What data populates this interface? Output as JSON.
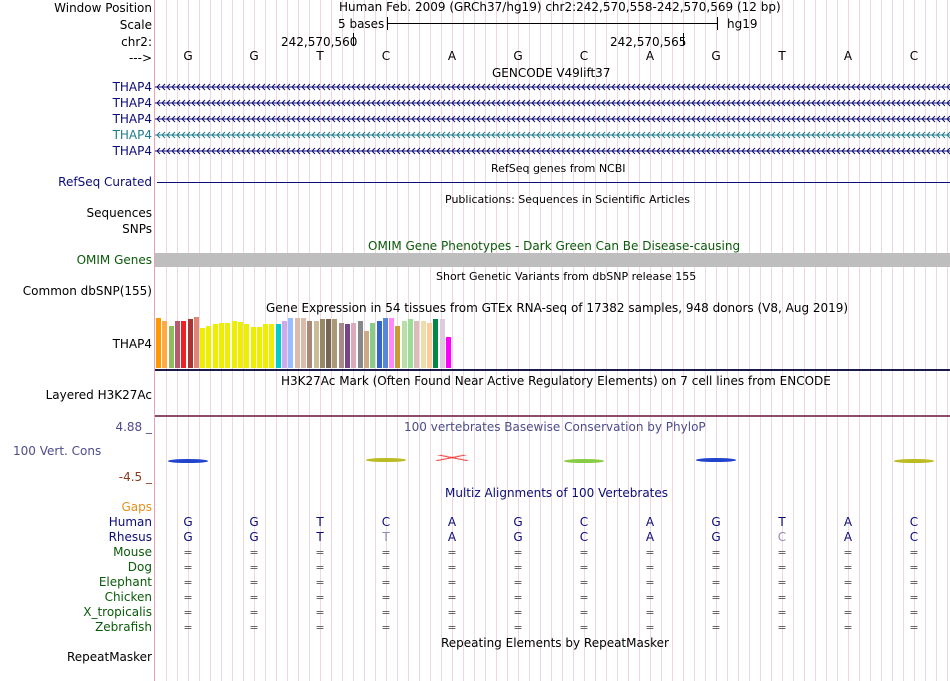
{
  "window_position": {
    "label": "Window Position",
    "text": "Human Feb. 2009 (GRCh37/hg19)   chr2:242,570,558-242,570,569 (12 bp)"
  },
  "scale": {
    "label": "Scale",
    "bases_text": "5 bases",
    "assembly": "hg19"
  },
  "chr": {
    "label": "chr2:",
    "coord1": "242,570,560",
    "coord2": "242,570,565"
  },
  "strand": {
    "label": "--->"
  },
  "sequence": [
    "G",
    "G",
    "T",
    "C",
    "A",
    "G",
    "C",
    "A",
    "G",
    "T",
    "A",
    "C"
  ],
  "gencode": {
    "title": "GENCODE V49lift37",
    "tracks": [
      {
        "name": "THAP4",
        "color": "#0c0c78"
      },
      {
        "name": "THAP4",
        "color": "#0c0c78"
      },
      {
        "name": "THAP4",
        "color": "#0c0c78"
      },
      {
        "name": "THAP4",
        "color": "#1d7c8e"
      },
      {
        "name": "THAP4",
        "color": "#0c0c78"
      }
    ]
  },
  "refseq": {
    "title": "RefSeq genes from NCBI",
    "label": "RefSeq Curated",
    "color": "#0c0c78"
  },
  "publications": {
    "title": "Publications: Sequences in Scientific Articles",
    "label1": "Sequences",
    "label2": "SNPs"
  },
  "omim": {
    "title": "OMIM Gene Phenotypes - Dark Green Can Be Disease-causing",
    "label": "OMIM Genes",
    "color": "#0a5a0a",
    "bar_color": "#bebebe"
  },
  "dbsnp": {
    "title": "Short Genetic Variants from dbSNP release 155",
    "label": "Common dbSNP(155)"
  },
  "gtex": {
    "title": "Gene Expression in 54 tissues from GTEx RNA-seq of 17382 samples, 948 donors (V8, Aug 2019)",
    "label": "THAP4",
    "bars": [
      {
        "h": 0.98,
        "c": "#ff9900"
      },
      {
        "h": 0.93,
        "c": "#ffaa44"
      },
      {
        "h": 0.82,
        "c": "#8fbc5f"
      },
      {
        "h": 0.93,
        "c": "#b85a6b"
      },
      {
        "h": 0.93,
        "c": "#ee2222"
      },
      {
        "h": 0.96,
        "c": "#aa3333"
      },
      {
        "h": 1.0,
        "c": "#dd8877"
      },
      {
        "h": 0.78,
        "c": "#eeee00"
      },
      {
        "h": 0.82,
        "c": "#eeee00"
      },
      {
        "h": 0.86,
        "c": "#eeee00"
      },
      {
        "h": 0.88,
        "c": "#eeee00"
      },
      {
        "h": 0.88,
        "c": "#eeee00"
      },
      {
        "h": 0.93,
        "c": "#eeee00"
      },
      {
        "h": 0.9,
        "c": "#eeee00"
      },
      {
        "h": 0.86,
        "c": "#eeee00"
      },
      {
        "h": 0.8,
        "c": "#eeee00"
      },
      {
        "h": 0.8,
        "c": "#eeee00"
      },
      {
        "h": 0.86,
        "c": "#eeee00"
      },
      {
        "h": 0.86,
        "c": "#eeee00"
      },
      {
        "h": 0.86,
        "c": "#00cccc"
      },
      {
        "h": 0.93,
        "c": "#ccaaee"
      },
      {
        "h": 0.98,
        "c": "#99bbff"
      },
      {
        "h": 0.98,
        "c": "#ddbbaa"
      },
      {
        "h": 0.98,
        "c": "#ddbbaa"
      },
      {
        "h": 0.93,
        "c": "#aa8877"
      },
      {
        "h": 0.93,
        "c": "#ccbb99"
      },
      {
        "h": 0.96,
        "c": "#998866"
      },
      {
        "h": 0.96,
        "c": "#776655"
      },
      {
        "h": 0.96,
        "c": "#aa9977"
      },
      {
        "h": 0.88,
        "c": "#aa8888"
      },
      {
        "h": 0.86,
        "c": "#774488"
      },
      {
        "h": 0.88,
        "c": "#ddaabb"
      },
      {
        "h": 0.93,
        "c": "#888888"
      },
      {
        "h": 0.73,
        "c": "#ccaa88"
      },
      {
        "h": 0.88,
        "c": "#88cc88"
      },
      {
        "h": 0.93,
        "c": "#3366cc"
      },
      {
        "h": 0.98,
        "c": "#5588dd"
      },
      {
        "h": 0.98,
        "c": "#ff88ff"
      },
      {
        "h": 0.82,
        "c": "#cc9933"
      },
      {
        "h": 0.93,
        "c": "#bbddaa"
      },
      {
        "h": 0.96,
        "c": "#99dd99"
      },
      {
        "h": 0.93,
        "c": "#ddbbbb"
      },
      {
        "h": 0.93,
        "c": "#eeddaa"
      },
      {
        "h": 0.88,
        "c": "#ffcc99"
      },
      {
        "h": 0.96,
        "c": "#008844"
      },
      {
        "h": 0.96,
        "c": "#ddccdd"
      },
      {
        "h": 0.61,
        "c": "#ff00ff"
      }
    ]
  },
  "h3k27ac": {
    "title": "H3K27Ac Mark (Often Found Near Active Regulatory Elements) on 7 cell lines from ENCODE",
    "label": "Layered H3K27Ac"
  },
  "phylop": {
    "title": "100 vertebrates Basewise Conservation by PhyloP",
    "label": "100 Vert. Cons",
    "max": "4.88 _",
    "min": "-4.5 _",
    "color": "#4c4c8c",
    "logos": [
      {
        "base": "C",
        "pos": 0,
        "c": "#2244cc",
        "v": 0.25
      },
      {
        "base": "C",
        "pos": 3,
        "c": "#bbbb22",
        "v": 0.35
      },
      {
        "base": "A",
        "pos": 4,
        "c": "#ee2222",
        "v": 0.8
      },
      {
        "base": "G",
        "pos": 6,
        "c": "#88cc44",
        "v": 0.2
      },
      {
        "base": "C",
        "pos": 8,
        "c": "#2244cc",
        "v": 0.35
      },
      {
        "base": "G",
        "pos": 11,
        "c": "#bbbb22",
        "v": 0.25
      }
    ]
  },
  "multiz": {
    "title": "Multiz Alignments of 100 Vertebrates",
    "gaps_label": "Gaps",
    "species": [
      {
        "name": "Human",
        "color": "#0c0c78",
        "bases": [
          "G",
          "G",
          "T",
          "C",
          "A",
          "G",
          "C",
          "A",
          "G",
          "T",
          "A",
          "C"
        ]
      },
      {
        "name": "Rhesus",
        "color": "#0c0c78",
        "bases": [
          "G",
          "G",
          "T",
          "T",
          "A",
          "G",
          "C",
          "A",
          "G",
          "C",
          "A",
          "C"
        ]
      },
      {
        "name": "Mouse",
        "color": "#0a5a0a",
        "bases": [
          "=",
          "=",
          "=",
          "=",
          "=",
          "=",
          "=",
          "=",
          "=",
          "=",
          "=",
          "="
        ]
      },
      {
        "name": "Dog",
        "color": "#0a5a0a",
        "bases": [
          "=",
          "=",
          "=",
          "=",
          "=",
          "=",
          "=",
          "=",
          "=",
          "=",
          "=",
          "="
        ]
      },
      {
        "name": "Elephant",
        "color": "#0a5a0a",
        "bases": [
          "=",
          "=",
          "=",
          "=",
          "=",
          "=",
          "=",
          "=",
          "=",
          "=",
          "=",
          "="
        ]
      },
      {
        "name": "Chicken",
        "color": "#0a5a0a",
        "bases": [
          "=",
          "=",
          "=",
          "=",
          "=",
          "=",
          "=",
          "=",
          "=",
          "=",
          "=",
          "="
        ]
      },
      {
        "name": "X_tropicalis",
        "color": "#0a5a0a",
        "bases": [
          "=",
          "=",
          "=",
          "=",
          "=",
          "=",
          "=",
          "=",
          "=",
          "=",
          "=",
          "="
        ]
      },
      {
        "name": "Zebrafish",
        "color": "#0a5a0a",
        "bases": [
          "=",
          "=",
          "=",
          "=",
          "=",
          "=",
          "=",
          "=",
          "=",
          "=",
          "=",
          "="
        ]
      }
    ],
    "mismatch_color": "#8c8cb4"
  },
  "repeatmasker": {
    "title": "Repeating Elements by RepeatMasker",
    "label": "RepeatMasker"
  }
}
